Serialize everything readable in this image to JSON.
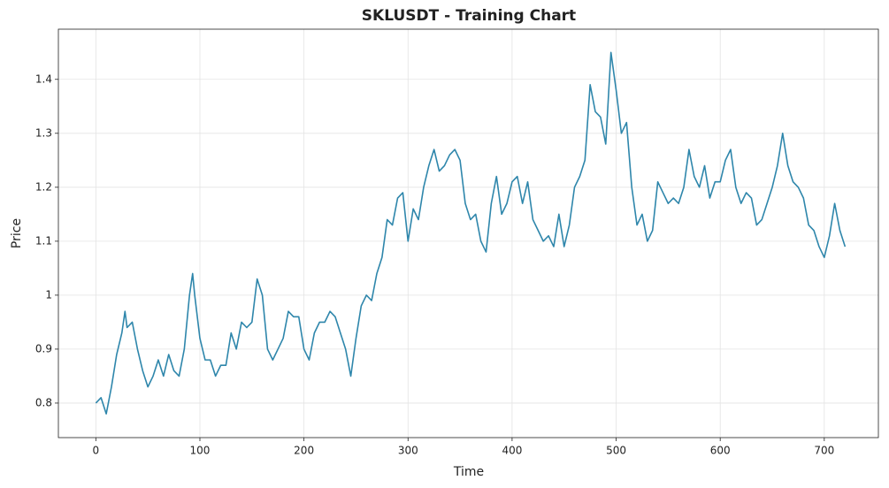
{
  "chart_data": {
    "type": "line",
    "title": "SKLUSDT - Training Chart",
    "x_label": "Time",
    "y_label": "Price",
    "x": [
      0,
      5,
      10,
      15,
      20,
      25,
      28,
      30,
      35,
      40,
      45,
      50,
      55,
      60,
      65,
      70,
      75,
      80,
      85,
      90,
      93,
      95,
      100,
      105,
      110,
      115,
      120,
      125,
      130,
      135,
      140,
      145,
      150,
      155,
      160,
      165,
      170,
      175,
      180,
      185,
      190,
      195,
      200,
      205,
      210,
      215,
      220,
      225,
      230,
      235,
      240,
      245,
      250,
      255,
      260,
      265,
      270,
      275,
      280,
      285,
      290,
      295,
      300,
      305,
      310,
      315,
      320,
      325,
      330,
      335,
      340,
      345,
      350,
      355,
      360,
      365,
      370,
      375,
      380,
      385,
      390,
      395,
      400,
      405,
      410,
      415,
      420,
      425,
      430,
      435,
      440,
      445,
      450,
      455,
      460,
      465,
      470,
      475,
      480,
      485,
      490,
      495,
      500,
      505,
      510,
      515,
      520,
      525,
      530,
      535,
      540,
      545,
      550,
      555,
      560,
      565,
      570,
      575,
      580,
      585,
      590,
      595,
      600,
      605,
      610,
      615,
      620,
      625,
      630,
      635,
      640,
      645,
      650,
      655,
      660,
      665,
      670,
      675,
      680,
      685,
      690,
      695,
      700,
      705,
      710,
      715,
      720
    ],
    "series": [
      {
        "name": "SKLUSDT",
        "color": "#2e86ab",
        "values": [
          0.8,
          0.81,
          0.78,
          0.83,
          0.89,
          0.93,
          0.97,
          0.94,
          0.95,
          0.9,
          0.86,
          0.83,
          0.85,
          0.88,
          0.85,
          0.89,
          0.86,
          0.85,
          0.9,
          1.0,
          1.04,
          1.0,
          0.92,
          0.88,
          0.88,
          0.85,
          0.87,
          0.87,
          0.93,
          0.9,
          0.95,
          0.94,
          0.95,
          1.03,
          1.0,
          0.9,
          0.88,
          0.9,
          0.92,
          0.97,
          0.96,
          0.96,
          0.9,
          0.88,
          0.93,
          0.95,
          0.95,
          0.97,
          0.96,
          0.93,
          0.9,
          0.85,
          0.92,
          0.98,
          1.0,
          0.99,
          1.04,
          1.07,
          1.14,
          1.13,
          1.18,
          1.19,
          1.1,
          1.16,
          1.14,
          1.2,
          1.24,
          1.27,
          1.23,
          1.24,
          1.26,
          1.27,
          1.25,
          1.17,
          1.14,
          1.15,
          1.1,
          1.08,
          1.17,
          1.22,
          1.15,
          1.17,
          1.21,
          1.22,
          1.17,
          1.21,
          1.14,
          1.12,
          1.1,
          1.11,
          1.09,
          1.15,
          1.09,
          1.13,
          1.2,
          1.22,
          1.25,
          1.39,
          1.34,
          1.33,
          1.28,
          1.45,
          1.38,
          1.3,
          1.32,
          1.2,
          1.13,
          1.15,
          1.1,
          1.12,
          1.21,
          1.19,
          1.17,
          1.18,
          1.17,
          1.2,
          1.27,
          1.22,
          1.2,
          1.24,
          1.18,
          1.21,
          1.21,
          1.25,
          1.27,
          1.2,
          1.17,
          1.19,
          1.18,
          1.13,
          1.14,
          1.17,
          1.2,
          1.24,
          1.3,
          1.24,
          1.21,
          1.2,
          1.18,
          1.13,
          1.12,
          1.09,
          1.07,
          1.11,
          1.17,
          1.12,
          1.09
        ]
      }
    ],
    "xlim": [
      -36,
      752
    ],
    "ylim": [
      0.736,
      1.493
    ],
    "xticks": [
      0,
      100,
      200,
      300,
      400,
      500,
      600,
      700
    ],
    "yticks": [
      0.8,
      0.9,
      1.0,
      1.1,
      1.2,
      1.3,
      1.4
    ],
    "grid": true
  }
}
